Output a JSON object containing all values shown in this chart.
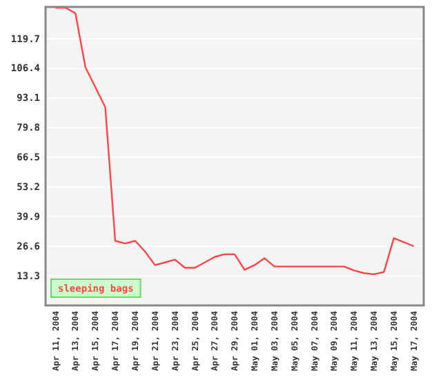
{
  "chart_data": {
    "type": "line",
    "x": [
      "2004-04-11",
      "2004-04-12",
      "2004-04-13",
      "2004-04-14",
      "2004-04-15",
      "2004-04-16",
      "2004-04-17",
      "2004-04-18",
      "2004-04-19",
      "2004-04-20",
      "2004-04-21",
      "2004-04-22",
      "2004-04-23",
      "2004-04-24",
      "2004-04-25",
      "2004-04-26",
      "2004-04-27",
      "2004-04-28",
      "2004-04-29",
      "2004-04-30",
      "2004-05-01",
      "2004-05-02",
      "2004-05-03",
      "2004-05-04",
      "2004-05-05",
      "2004-05-06",
      "2004-05-07",
      "2004-05-08",
      "2004-05-09",
      "2004-05-10",
      "2004-05-11",
      "2004-05-12",
      "2004-05-13",
      "2004-05-14",
      "2004-05-15",
      "2004-05-16",
      "2004-05-17"
    ],
    "series": [
      {
        "name": "sleeping bags",
        "color": "#ff4444",
        "values": [
          133.6,
          133.6,
          131.2,
          107,
          98,
          89,
          29,
          27.8,
          29,
          24.2,
          18.1,
          19.3,
          20.6,
          16.9,
          16.9,
          19.3,
          21.8,
          23,
          23,
          16,
          18.1,
          21.2,
          17.5,
          17.5,
          17.5,
          17.5,
          17.5,
          17.5,
          17.5,
          17.5,
          15.7,
          14.5,
          14,
          15,
          30.2,
          28.4,
          26.6
        ]
      }
    ],
    "xlim": [
      "2004-04-10",
      "2004-05-18"
    ],
    "xticks": [
      {
        "value": "2004-04-11",
        "label": "Apr 11, 2004"
      },
      {
        "value": "2004-04-13",
        "label": "Apr 13, 2004"
      },
      {
        "value": "2004-04-15",
        "label": "Apr 15, 2004"
      },
      {
        "value": "2004-04-17",
        "label": "Apr 17, 2004"
      },
      {
        "value": "2004-04-19",
        "label": "Apr 19, 2004"
      },
      {
        "value": "2004-04-21",
        "label": "Apr 21, 2004"
      },
      {
        "value": "2004-04-23",
        "label": "Apr 23, 2004"
      },
      {
        "value": "2004-04-25",
        "label": "Apr 25, 2004"
      },
      {
        "value": "2004-04-27",
        "label": "Apr 27, 2004"
      },
      {
        "value": "2004-04-29",
        "label": "Apr 29, 2004"
      },
      {
        "value": "2004-05-01",
        "label": "May 01, 2004"
      },
      {
        "value": "2004-05-03",
        "label": "May 03, 2004"
      },
      {
        "value": "2004-05-05",
        "label": "May 05, 2004"
      },
      {
        "value": "2004-05-07",
        "label": "May 07, 2004"
      },
      {
        "value": "2004-05-09",
        "label": "May 09, 2004"
      },
      {
        "value": "2004-05-11",
        "label": "May 11, 2004"
      },
      {
        "value": "2004-05-13",
        "label": "May 13, 2004"
      },
      {
        "value": "2004-05-15",
        "label": "May 15, 2004"
      },
      {
        "value": "2004-05-17",
        "label": "May 17, 2004"
      }
    ],
    "ylim": [
      0,
      134
    ],
    "yticks": [
      13.3,
      26.6,
      39.9,
      53.2,
      66.5,
      79.8,
      93.1,
      106.4,
      119.7
    ],
    "grid": "y",
    "legend": "bottom",
    "marker": "none",
    "line_style": "solid"
  }
}
